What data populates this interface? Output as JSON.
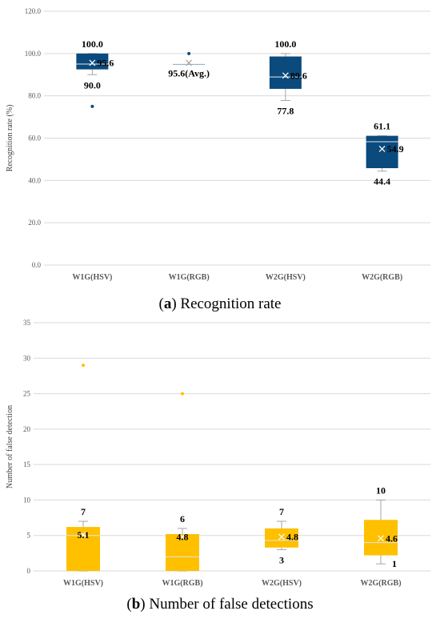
{
  "chart_data": [
    {
      "type": "box",
      "caption_letter": "a",
      "caption_text": " Recognition rate",
      "ylabel": "Recognition rate (%)",
      "ylim": [
        0,
        120
      ],
      "yticks": [
        0,
        20,
        40,
        60,
        80,
        100,
        120
      ],
      "ytick_labels": [
        "0.0",
        "20.0",
        "40.0",
        "60.0",
        "80.0",
        "100.0",
        "120.0"
      ],
      "categories": [
        "W1G(HSV)",
        "W1G(RGB)",
        "W2G(HSV)",
        "W2G(RGB)"
      ],
      "color": "#0b4a7c",
      "grid": true,
      "boxes": [
        {
          "whisker_low": 90,
          "q1": 92.5,
          "median": 95,
          "q3": 100,
          "whisker_high": 100,
          "mean": 95.6,
          "outliers": [
            75
          ]
        },
        {
          "whisker_low": 95,
          "q1": 95,
          "median": 95,
          "q3": 95,
          "whisker_high": 95,
          "mean": 95.6,
          "outliers": [
            100
          ]
        },
        {
          "whisker_low": 77.8,
          "q1": 83.3,
          "median": 88.9,
          "q3": 98.6,
          "whisker_high": 100,
          "mean": 89.6,
          "outliers": []
        },
        {
          "whisker_low": 44.4,
          "q1": 45.8,
          "median": 58.3,
          "q3": 61.1,
          "whisker_high": 61.1,
          "mean": 54.9,
          "outliers": []
        }
      ],
      "annotations": [
        {
          "cat": 0,
          "y": 100,
          "text": "100.0",
          "pos": "above"
        },
        {
          "cat": 0,
          "y": 95.6,
          "text": "95.6",
          "pos": "right"
        },
        {
          "cat": 0,
          "y": 90,
          "text": "90.0",
          "pos": "below"
        },
        {
          "cat": 1,
          "y": 95.6,
          "text": "95.6(Avg.)",
          "pos": "below"
        },
        {
          "cat": 2,
          "y": 100,
          "text": "100.0",
          "pos": "above"
        },
        {
          "cat": 2,
          "y": 89.6,
          "text": "89.6",
          "pos": "right"
        },
        {
          "cat": 2,
          "y": 77.8,
          "text": "77.8",
          "pos": "below"
        },
        {
          "cat": 3,
          "y": 61.1,
          "text": "61.1",
          "pos": "above"
        },
        {
          "cat": 3,
          "y": 54.9,
          "text": "54.9",
          "pos": "right"
        },
        {
          "cat": 3,
          "y": 44.4,
          "text": "44.4",
          "pos": "below"
        }
      ]
    },
    {
      "type": "box",
      "caption_letter": "b",
      "caption_text": " Number of false detections",
      "ylabel": "Number of false detection",
      "ylim": [
        0,
        35
      ],
      "yticks": [
        0,
        5,
        10,
        15,
        20,
        25,
        30,
        35
      ],
      "ytick_labels": [
        "0",
        "5",
        "10",
        "15",
        "20",
        "25",
        "30",
        "35"
      ],
      "categories": [
        "W1G(HSV)",
        "W1G(RGB)",
        "W2G(HSV)",
        "W2G(RGB)"
      ],
      "color": "#ffc000",
      "grid": true,
      "boxes": [
        {
          "whisker_low": 0,
          "q1": 0,
          "median": 5,
          "q3": 6.2,
          "whisker_high": 7,
          "mean": 5.1,
          "outliers": [
            29
          ]
        },
        {
          "whisker_low": 0,
          "q1": 0,
          "median": 2,
          "q3": 5.2,
          "whisker_high": 6,
          "mean": 4.8,
          "outliers": [
            25
          ]
        },
        {
          "whisker_low": 3,
          "q1": 3.3,
          "median": 4.3,
          "q3": 6,
          "whisker_high": 7,
          "mean": 4.8,
          "outliers": []
        },
        {
          "whisker_low": 1,
          "q1": 2.2,
          "median": 4,
          "q3": 7.2,
          "whisker_high": 10,
          "mean": 4.6,
          "outliers": []
        }
      ],
      "annotations": [
        {
          "cat": 0,
          "y": 7,
          "text": "7",
          "pos": "above"
        },
        {
          "cat": 0,
          "y": 5.1,
          "text": "5.1",
          "pos": "center"
        },
        {
          "cat": 1,
          "y": 6,
          "text": "6",
          "pos": "above"
        },
        {
          "cat": 1,
          "y": 4.8,
          "text": "4.8",
          "pos": "center"
        },
        {
          "cat": 2,
          "y": 7,
          "text": "7",
          "pos": "above"
        },
        {
          "cat": 2,
          "y": 4.8,
          "text": "4.8",
          "pos": "right"
        },
        {
          "cat": 2,
          "y": 3,
          "text": "3",
          "pos": "below"
        },
        {
          "cat": 3,
          "y": 10,
          "text": "10",
          "pos": "above"
        },
        {
          "cat": 3,
          "y": 4.6,
          "text": "4.6",
          "pos": "right"
        },
        {
          "cat": 3,
          "y": 1,
          "text": "1",
          "pos": "belowright"
        }
      ]
    }
  ]
}
